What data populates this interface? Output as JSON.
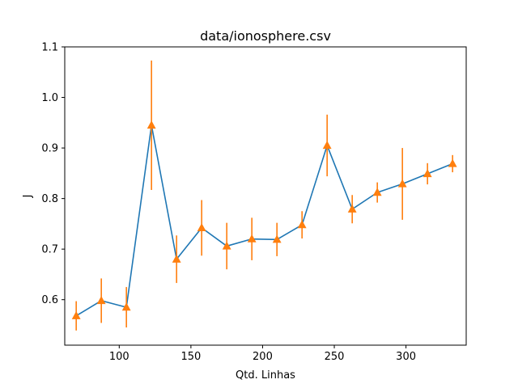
{
  "chart_data": {
    "type": "line",
    "title": "data/ionosphere.csv",
    "xlabel": "Qtd. Linhas",
    "ylabel": "J",
    "xlim": [
      62,
      342
    ],
    "ylim": [
      0.51,
      1.1
    ],
    "xticks": [
      100,
      150,
      200,
      250,
      300
    ],
    "yticks": [
      0.6,
      0.7,
      0.8,
      0.9,
      1.0,
      1.1
    ],
    "ytick_labels": [
      "0.6",
      "0.7",
      "0.8",
      "0.9",
      "1.0",
      "1.1"
    ],
    "grid": false,
    "series": [
      {
        "x": [
          70,
          87.5,
          105,
          122.5,
          140,
          157.5,
          175,
          192.5,
          210,
          227.5,
          245,
          262.5,
          280,
          297.5,
          315,
          332.5
        ],
        "y": [
          0.568,
          0.598,
          0.585,
          0.945,
          0.68,
          0.742,
          0.706,
          0.72,
          0.719,
          0.748,
          0.905,
          0.779,
          0.812,
          0.829,
          0.849,
          0.869
        ],
        "yerr": [
          0.029,
          0.044,
          0.04,
          0.128,
          0.047,
          0.055,
          0.046,
          0.042,
          0.033,
          0.027,
          0.061,
          0.028,
          0.02,
          0.071,
          0.021,
          0.017
        ],
        "line_color": "#1f77b4",
        "marker_color": "#ff7f0e",
        "errorbar_color": "#ff7f0e",
        "marker": "triangle-up"
      }
    ]
  }
}
